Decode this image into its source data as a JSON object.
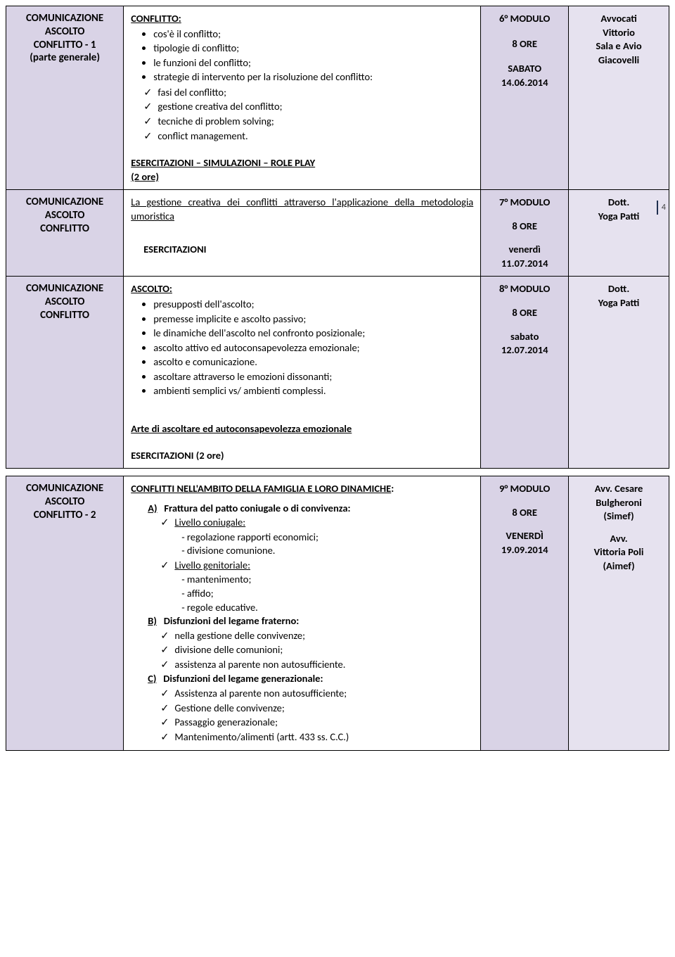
{
  "page_number": "4",
  "tables": [
    {
      "rows": [
        {
          "left": "COMUNICAZIONE\nASCOLTO\nCONFLITTO - 1\n(parte generale)",
          "mid": {
            "heading": "CONFLITTO:",
            "bullets": [
              "cos'è il conflitto;",
              "tipologie di conflitto;",
              "le funzioni del conflitto;",
              "strategie di intervento per la risoluzione del conflitto:"
            ],
            "checks": [
              "fasi del conflitto;",
              "gestione creativa del conflitto;",
              "tecniche di problem solving;",
              "conflict management."
            ],
            "tail": "ESERCITAZIONI – SIMULAZIONI – ROLE PLAY\n(2 ore)"
          },
          "colA": {
            "title": "6° MODULO",
            "ore": "8 ORE",
            "day_label": "SABATO",
            "date": "14.06.2014"
          },
          "colB": "Avvocati\nVittorio\nSala e Avio\nGiacovelli"
        },
        {
          "left": "COMUNICAZIONE\nASCOLTO\nCONFLITTO",
          "mid": {
            "lead_under": "La gestione creativa dei conflitti attraverso l'applicazione della metodologia umoristica",
            "eserc": "ESERCITAZIONI"
          },
          "colA": {
            "title": "7° MODULO",
            "ore": "8 ORE",
            "day_label": "venerdì",
            "date": "11.07.2014"
          },
          "colB": "Dott.\nYoga Patti"
        },
        {
          "left": "COMUNICAZIONE\nASCOLTO\nCONFLITTO",
          "mid": {
            "heading": "ASCOLTO:",
            "bullets": [
              "presupposti dell'ascolto;",
              "premesse implicite e ascolto passivo;",
              "le dinamiche dell'ascolto nel confronto posizionale;",
              "ascolto attivo ed autoconsapevolezza emozionale;",
              "ascolto e comunicazione.",
              "ascoltare attraverso le emozioni dissonanti;",
              "ambienti semplici vs/ ambienti complessi."
            ],
            "subhead2": "Arte di ascoltare ed autoconsapevolezza emozionale",
            "tail": "ESERCITAZIONI (2 ore)"
          },
          "colA": {
            "title": "8° MODULO",
            "ore": "8 ORE",
            "day_label": "sabato",
            "date": "12.07.2014"
          },
          "colB": "Dott.\nYoga Patti"
        }
      ]
    },
    {
      "rows": [
        {
          "left": "COMUNICAZIONE\nASCOLTO\nCONFLITTO - 2",
          "mid": {
            "lead_under": "CONFLITTI NELL'AMBITO DELLA FAMIGLIA E LORO DINAMICHE",
            "sections": [
              {
                "letter": "A)",
                "title": "Frattura del patto coniugale o di convivenza:",
                "sub": [
                  {
                    "t": "Livello coniugale:",
                    "lines": [
                      "- regolazione rapporti economici;",
                      "- divisione comunione."
                    ]
                  },
                  {
                    "t": "Livello genitoriale:",
                    "lines": [
                      "- mantenimento;",
                      "- affido;",
                      "- regole educative."
                    ]
                  }
                ]
              },
              {
                "letter": "B)",
                "title": "Disfunzioni del legame fraterno:",
                "checks": [
                  "nella gestione delle convivenze;",
                  "divisione delle comunioni;",
                  "assistenza al parente non autosufficiente."
                ]
              },
              {
                "letter": "C)",
                "title": "Disfunzioni del legame generazionale:",
                "checks": [
                  "Assistenza al parente non autosufficiente;",
                  "Gestione delle convivenze;",
                  "Passaggio generazionale;",
                  "Mantenimento/alimenti (artt. 433 ss. C.C.)"
                ]
              }
            ]
          },
          "colA": {
            "title": "9° MODULO",
            "ore": "8 ORE",
            "day_label": "VENERDÌ",
            "date": "19.09.2014"
          },
          "colB": "Avv. Cesare\nBulgheroni\n(Simef)\n\nAvv.\nVittoria Poli\n(Aimef)"
        }
      ]
    }
  ]
}
